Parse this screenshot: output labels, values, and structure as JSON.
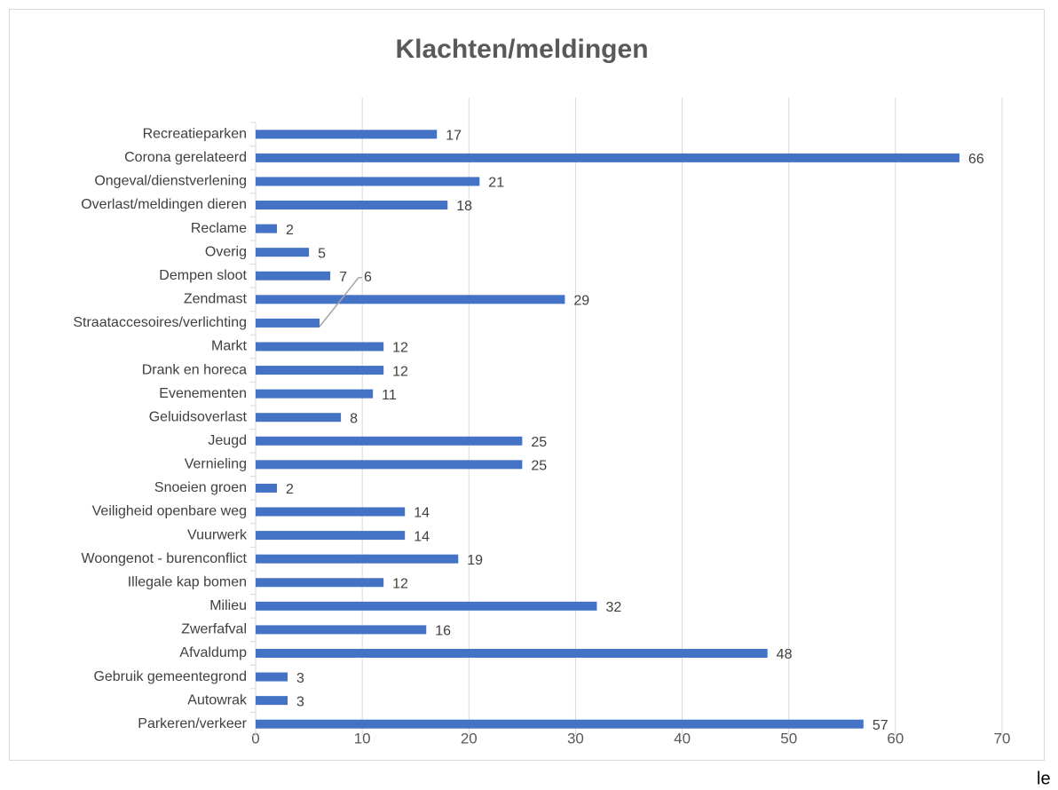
{
  "chart_data": {
    "type": "bar",
    "orientation": "horizontal",
    "title": "Klachten/meldingen",
    "categories": [
      "Recreatieparken",
      "Corona gerelateerd",
      "Ongeval/dienstverlening",
      "Overlast/meldingen dieren",
      "Reclame",
      "Overig",
      "Dempen sloot",
      "Zendmast",
      "Straataccesoires/verlichting",
      "Markt",
      "Drank en horeca",
      "Evenementen",
      "Geluidsoverlast",
      "Jeugd",
      "Vernieling",
      "Snoeien groen",
      "Veiligheid openbare weg",
      "Vuurwerk",
      "Woongenot - burenconflict",
      "Illegale kap bomen",
      "Milieu",
      "Zwerfafval",
      "Afvaldump",
      "Gebruik gemeentegrond",
      "Autowrak",
      "Parkeren/verkeer"
    ],
    "values": [
      17,
      66,
      21,
      18,
      2,
      5,
      7,
      29,
      6,
      12,
      12,
      11,
      8,
      25,
      25,
      2,
      14,
      14,
      19,
      12,
      32,
      16,
      48,
      3,
      3,
      57
    ],
    "color": "#4472c4",
    "xlim": [
      0,
      70
    ],
    "xticks": [
      0,
      10,
      20,
      30,
      40,
      50,
      60,
      70
    ],
    "grid": true
  },
  "stray_text": "le"
}
